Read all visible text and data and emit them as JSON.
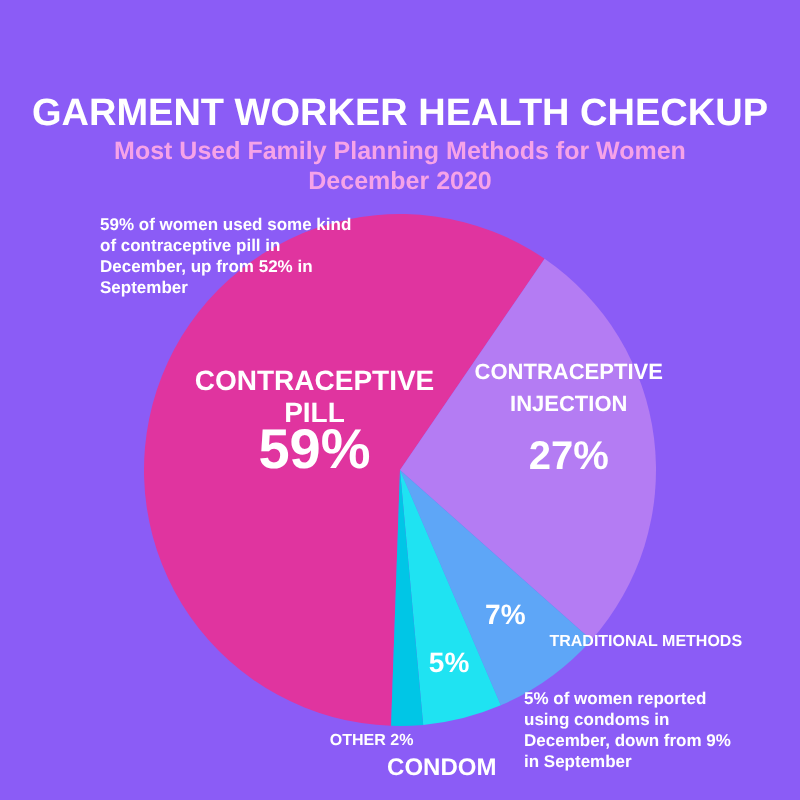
{
  "chart_data": {
    "type": "pie",
    "title": "GARMENT WORKER HEALTH CHECKUP",
    "subtitle": "Most Used Family Planning Methods for Women December 2020",
    "categories": [
      "CONTRACEPTIVE PILL",
      "CONTRACEPTIVE INJECTION",
      "TRADITIONAL METHODS",
      "CONDOM",
      "OTHER"
    ],
    "values": [
      59,
      27,
      7,
      5,
      2
    ],
    "value_labels": [
      "59%",
      "27%",
      "7%",
      "5%",
      "2%"
    ],
    "colors": [
      "#e0349f",
      "#b47cf3",
      "#5ea6f7",
      "#1fe3f2",
      "#00c6e6"
    ],
    "legend": false,
    "annotations": [
      "59% of women used some kind of contraceptive pill in December, up from 52% in September",
      "5% of women reported using condoms in December, down from 9% in September"
    ]
  }
}
